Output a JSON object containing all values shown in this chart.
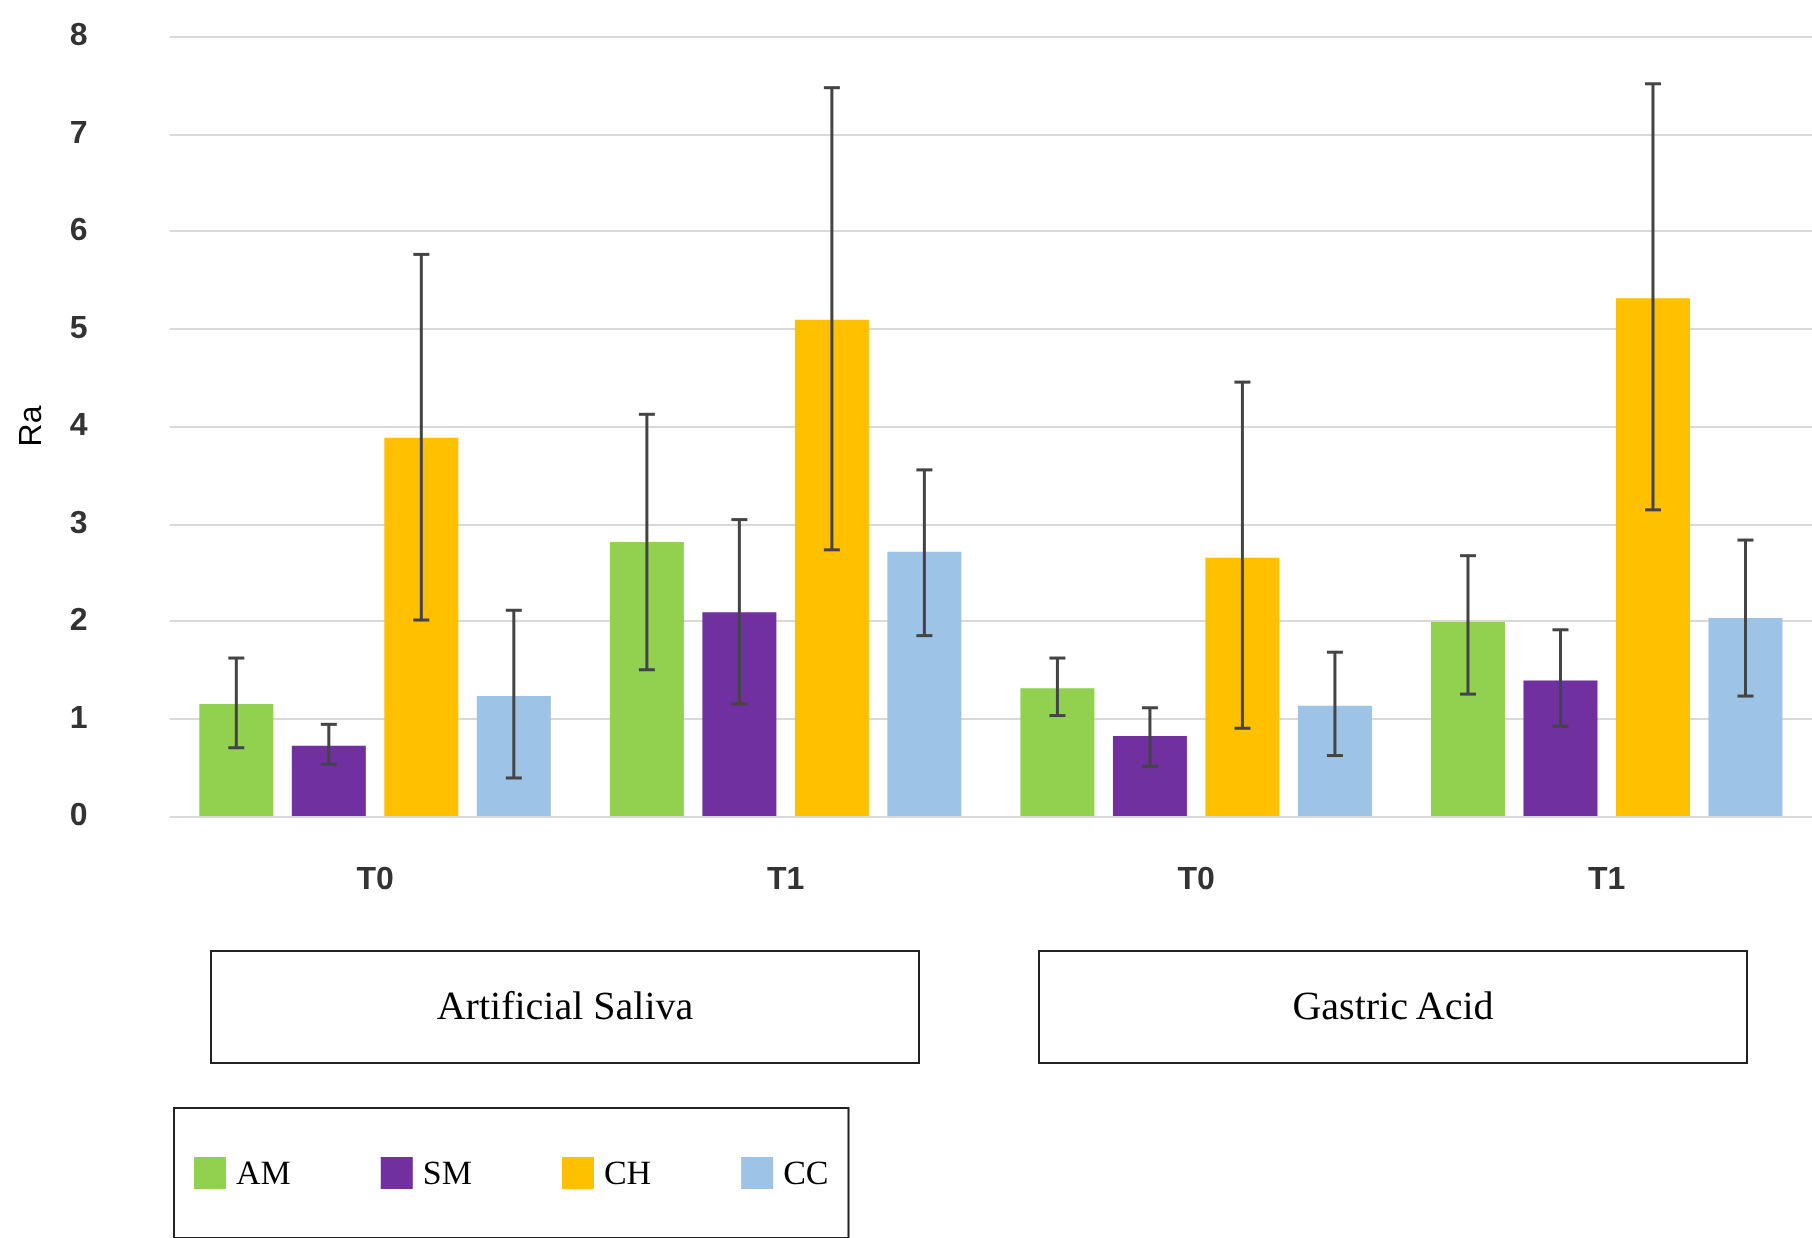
{
  "chart_data": {
    "type": "bar",
    "ylabel": "Ra",
    "categories": [
      "T0",
      "T1",
      "T0",
      "T1"
    ],
    "series": [
      {
        "name": "AM",
        "color": "#92d050",
        "values": [
          1.15,
          2.81,
          1.31,
          1.99
        ],
        "errors": [
          [
            0.7,
            1.62
          ],
          [
            1.5,
            4.12
          ],
          [
            1.03,
            1.62
          ],
          [
            1.25,
            2.67
          ]
        ]
      },
      {
        "name": "SM",
        "color": "#7030a0",
        "values": [
          0.72,
          2.09,
          0.82,
          1.39
        ],
        "errors": [
          [
            0.53,
            0.94
          ],
          [
            1.15,
            3.04
          ],
          [
            0.51,
            1.11
          ],
          [
            0.92,
            1.91
          ]
        ]
      },
      {
        "name": "CH",
        "color": "#ffc000",
        "values": [
          3.88,
          5.09,
          2.65,
          5.31
        ],
        "errors": [
          [
            2.01,
            5.76
          ],
          [
            2.73,
            7.47
          ],
          [
            0.9,
            4.45
          ],
          [
            3.14,
            7.51
          ]
        ]
      },
      {
        "name": "CC",
        "color": "#9dc3e6",
        "values": [
          1.23,
          2.71,
          1.13,
          2.03
        ],
        "errors": [
          [
            0.39,
            2.11
          ],
          [
            1.85,
            3.55
          ],
          [
            0.62,
            1.68
          ],
          [
            1.23,
            2.83
          ]
        ]
      }
    ],
    "ylim": [
      0,
      8
    ],
    "yticks": [
      0,
      1,
      2,
      3,
      4,
      5,
      6,
      7,
      8
    ],
    "grid": "y",
    "legend": "bottom",
    "annotations": [
      "Artificial Saliva",
      "Gastric Acid"
    ]
  }
}
